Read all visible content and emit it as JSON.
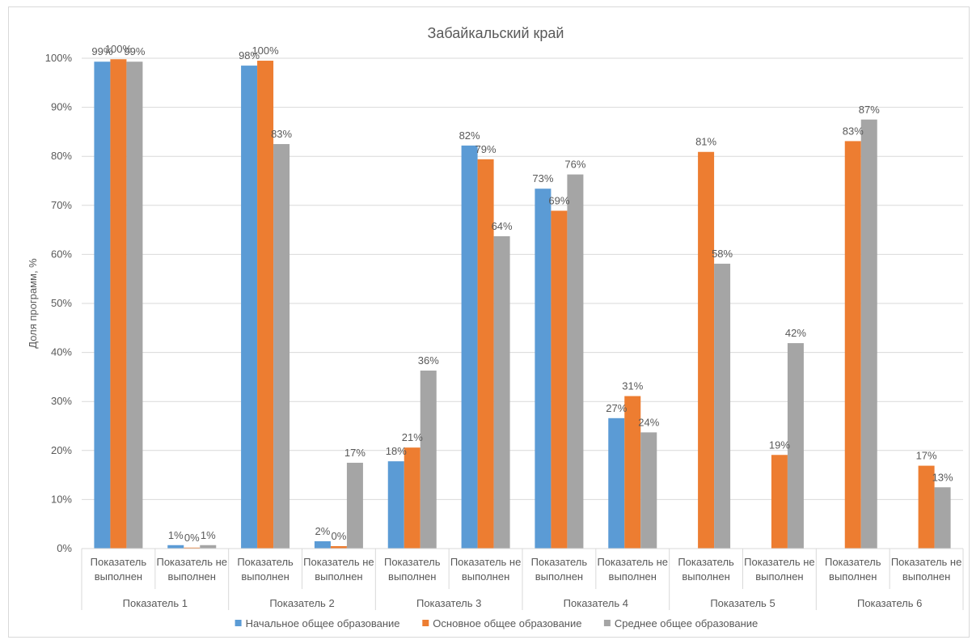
{
  "chart_data": {
    "type": "bar",
    "title": "Забайкальский край",
    "ylabel": "Доля программ, %",
    "xlabel": "",
    "ylim": [
      0,
      100
    ],
    "y_ticks": [
      "0%",
      "10%",
      "20%",
      "30%",
      "40%",
      "50%",
      "60%",
      "70%",
      "80%",
      "90%",
      "100%"
    ],
    "grid": true,
    "legend_position": "bottom",
    "groups": [
      "Показатель 1",
      "Показатель 2",
      "Показатель 3",
      "Показатель 4",
      "Показатель 5",
      "Показатель 6"
    ],
    "subcategories": [
      [
        "Показатель",
        "выполнен"
      ],
      [
        "Показатель не",
        "выполнен"
      ]
    ],
    "series": [
      {
        "name": "Начальное общее образование",
        "color": "#5b9bd5",
        "values": [
          99.3,
          0.7,
          98.5,
          1.5,
          17.8,
          82.2,
          73.4,
          26.6,
          null,
          null,
          null,
          null
        ],
        "labels": [
          "99%",
          "1%",
          "98%",
          "2%",
          "18%",
          "82%",
          "73%",
          "27%",
          "",
          "",
          "",
          ""
        ]
      },
      {
        "name": "Основное общее образование",
        "color": "#ed7d31",
        "values": [
          99.8,
          0.2,
          99.5,
          0.5,
          20.6,
          79.4,
          68.9,
          31.1,
          80.9,
          19.1,
          83.1,
          16.9
        ],
        "labels": [
          "100%",
          "0%",
          "100%",
          "0%",
          "21%",
          "79%",
          "69%",
          "31%",
          "81%",
          "19%",
          "83%",
          "17%"
        ]
      },
      {
        "name": "Среднее общее образование",
        "color": "#a5a5a5",
        "values": [
          99.3,
          0.7,
          82.5,
          17.5,
          36.3,
          63.7,
          76.3,
          23.7,
          58.1,
          41.9,
          87.5,
          12.5
        ],
        "labels": [
          "99%",
          "1%",
          "83%",
          "17%",
          "36%",
          "64%",
          "76%",
          "24%",
          "58%",
          "42%",
          "87%",
          "13%"
        ]
      }
    ]
  }
}
